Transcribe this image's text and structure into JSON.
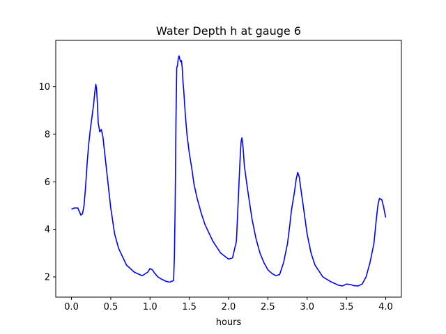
{
  "chart_data": {
    "type": "line",
    "title": "Water Depth h at gauge 6",
    "xlabel": "hours",
    "ylabel": "",
    "xlim": [
      -0.2,
      4.2
    ],
    "ylim": [
      1.15,
      11.95
    ],
    "xticks": [
      0.0,
      0.5,
      1.0,
      1.5,
      2.0,
      2.5,
      3.0,
      3.5,
      4.0
    ],
    "xtick_labels": [
      "0.0",
      "0.5",
      "1.0",
      "1.5",
      "2.0",
      "2.5",
      "3.0",
      "3.5",
      "4.0"
    ],
    "yticks": [
      2,
      4,
      6,
      8,
      10
    ],
    "ytick_labels": [
      "2",
      "4",
      "6",
      "8",
      "10"
    ],
    "grid": false,
    "legend": false,
    "series": [
      {
        "color": "#0000ff",
        "x": [
          0.0,
          0.04,
          0.08,
          0.1,
          0.12,
          0.14,
          0.16,
          0.18,
          0.2,
          0.22,
          0.24,
          0.26,
          0.28,
          0.3,
          0.31,
          0.32,
          0.33,
          0.34,
          0.36,
          0.38,
          0.4,
          0.42,
          0.44,
          0.46,
          0.5,
          0.55,
          0.6,
          0.7,
          0.8,
          0.9,
          0.97,
          1.0,
          1.03,
          1.06,
          1.1,
          1.15,
          1.2,
          1.25,
          1.3,
          1.31,
          1.32,
          1.33,
          1.34,
          1.35,
          1.36,
          1.37,
          1.38,
          1.39,
          1.4,
          1.41,
          1.42,
          1.43,
          1.44,
          1.45,
          1.47,
          1.5,
          1.53,
          1.56,
          1.6,
          1.65,
          1.7,
          1.8,
          1.9,
          2.0,
          2.05,
          2.1,
          2.12,
          2.14,
          2.15,
          2.16,
          2.17,
          2.18,
          2.19,
          2.2,
          2.22,
          2.25,
          2.3,
          2.35,
          2.4,
          2.45,
          2.5,
          2.55,
          2.6,
          2.65,
          2.7,
          2.75,
          2.78,
          2.8,
          2.82,
          2.84,
          2.86,
          2.88,
          2.9,
          2.92,
          2.95,
          3.0,
          3.05,
          3.1,
          3.2,
          3.3,
          3.4,
          3.45,
          3.5,
          3.55,
          3.6,
          3.65,
          3.7,
          3.75,
          3.8,
          3.85,
          3.88,
          3.9,
          3.92,
          3.95,
          3.97,
          4.0
        ],
        "y": [
          4.85,
          4.9,
          4.9,
          4.75,
          4.6,
          4.65,
          5.0,
          5.8,
          6.8,
          7.6,
          8.2,
          8.7,
          9.2,
          9.85,
          10.1,
          9.9,
          9.3,
          8.5,
          8.1,
          8.2,
          7.9,
          7.3,
          6.7,
          6.1,
          4.9,
          3.8,
          3.2,
          2.5,
          2.2,
          2.05,
          2.2,
          2.35,
          2.3,
          2.15,
          2.0,
          1.9,
          1.82,
          1.78,
          1.85,
          2.8,
          5.0,
          8.5,
          10.8,
          10.9,
          11.2,
          11.3,
          11.15,
          11.05,
          11.1,
          10.8,
          10.2,
          9.8,
          9.3,
          8.8,
          8.0,
          7.2,
          6.6,
          5.9,
          5.3,
          4.7,
          4.2,
          3.5,
          3.0,
          2.75,
          2.8,
          3.5,
          5.0,
          6.5,
          7.2,
          7.7,
          7.85,
          7.6,
          7.2,
          6.7,
          6.2,
          5.5,
          4.4,
          3.6,
          3.0,
          2.6,
          2.3,
          2.15,
          2.05,
          2.1,
          2.6,
          3.4,
          4.2,
          4.8,
          5.2,
          5.6,
          6.1,
          6.4,
          6.2,
          5.7,
          5.0,
          3.8,
          3.0,
          2.5,
          2.0,
          1.8,
          1.65,
          1.62,
          1.7,
          1.68,
          1.63,
          1.62,
          1.7,
          2.0,
          2.6,
          3.4,
          4.4,
          5.0,
          5.3,
          5.25,
          5.0,
          4.5
        ]
      }
    ]
  }
}
